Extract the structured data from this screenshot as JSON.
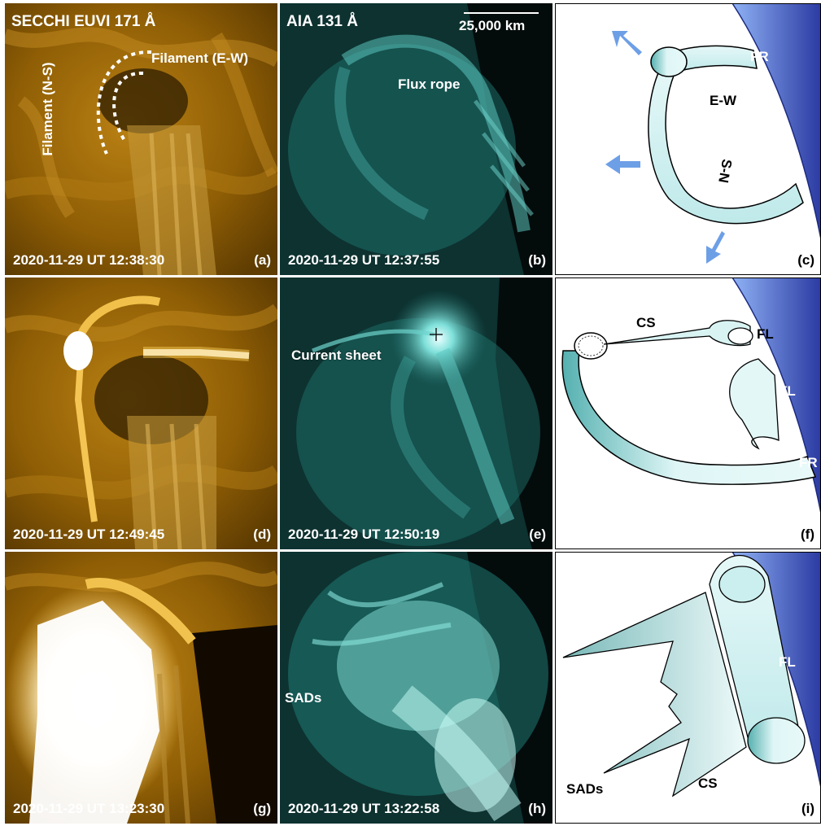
{
  "colors": {
    "euvi": "#a87206",
    "aia": "#3a9a92",
    "sun_light": "#86aaf0",
    "sun_dark": "#2f3fa8",
    "tube": "#cfeff0",
    "tube_dark": "#4aa5a5",
    "arrow": "#6d9fe6"
  },
  "panels": [
    {
      "id": "a",
      "label": "(a)",
      "instrument": "SECCHI EUVI 171 Å",
      "timestamp": "2020-11-29 UT 12:38:30",
      "annotations": [
        "Filament (E-W)",
        "Filament (N-S)"
      ]
    },
    {
      "id": "b",
      "label": "(b)",
      "instrument": "AIA 131 Å",
      "timestamp": "2020-11-29 UT 12:37:55",
      "scale_bar": "25,000 km",
      "annotations": [
        "Flux rope"
      ]
    },
    {
      "id": "c",
      "label": "(c)",
      "annotations": [
        "FR",
        "E-W",
        "S-N"
      ]
    },
    {
      "id": "d",
      "label": "(d)",
      "timestamp": "2020-11-29 UT 12:49:45"
    },
    {
      "id": "e",
      "label": "(e)",
      "timestamp": "2020-11-29 UT 12:50:19",
      "annotations": [
        "Current sheet"
      ]
    },
    {
      "id": "f",
      "label": "(f)",
      "annotations": [
        "CS",
        "FL",
        "FL",
        "FR"
      ]
    },
    {
      "id": "g",
      "label": "(g)",
      "timestamp": "2020-11-29 UT 13:23:30"
    },
    {
      "id": "h",
      "label": "(h)",
      "timestamp": "2020-11-29 UT 13:22:58",
      "annotations": [
        "SADs"
      ]
    },
    {
      "id": "i",
      "label": "(i)",
      "annotations": [
        "FL",
        "SADs",
        "CS"
      ]
    }
  ]
}
